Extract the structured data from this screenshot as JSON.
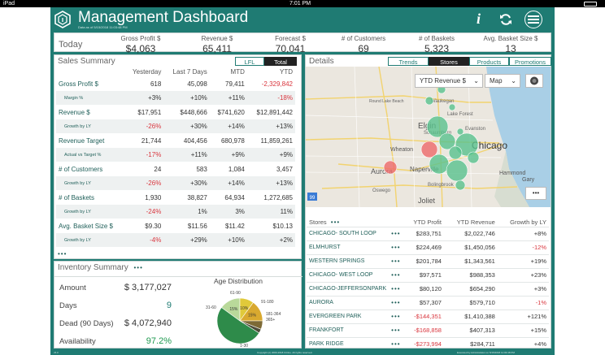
{
  "status_bar": {
    "device": "iPad",
    "time": "7:01 PM"
  },
  "header": {
    "title": "Management Dashboard",
    "as_of": "Data as of 5/15/2018 11:03:48 PM",
    "info_icon": "info-icon",
    "refresh_icon": "refresh-icon",
    "menu_icon": "menu-icon"
  },
  "today": {
    "label": "Today",
    "kpis": [
      {
        "label": "Gross Profit $",
        "value": "$4,063"
      },
      {
        "label": "Revenue $",
        "value": "65,411"
      },
      {
        "label": "Forecast $",
        "value": "70,041"
      },
      {
        "label": "# of Customers",
        "value": "69"
      },
      {
        "label": "# of Baskets",
        "value": "5,323"
      },
      {
        "label": "Avg. Basket Size $",
        "value": "13"
      }
    ]
  },
  "sales_summary": {
    "title": "Sales Summary",
    "toggle": [
      "LFL",
      "Total"
    ],
    "selected_toggle": "Total",
    "columns": [
      "Yesterday",
      "Last 7 Days",
      "MTD",
      "YTD"
    ],
    "rows": [
      {
        "label": "Gross Profit $",
        "values": [
          "618",
          "45,098",
          "79,411",
          "-2,329,842"
        ],
        "neg": [
          false,
          false,
          false,
          true
        ],
        "sub_label": "Margin %",
        "sub_values": [
          "+3%",
          "+10%",
          "+11%",
          "-18%"
        ],
        "sub_neg": [
          false,
          false,
          false,
          true
        ]
      },
      {
        "label": "Revenue  $",
        "values": [
          "$17,951",
          "$448,666",
          "$741,620",
          "$12,891,442"
        ],
        "neg": [
          false,
          false,
          false,
          false
        ],
        "sub_label": "Growth by LY",
        "sub_values": [
          "-26%",
          "+30%",
          "+14%",
          "+13%"
        ],
        "sub_neg": [
          true,
          false,
          false,
          false
        ]
      },
      {
        "label": "Revenue Target",
        "values": [
          "21,744",
          "404,456",
          "680,978",
          "11,859,261"
        ],
        "neg": [
          false,
          false,
          false,
          false
        ],
        "sub_label": "Actual vs Target %",
        "sub_values": [
          "-17%",
          "+11%",
          "+9%",
          "+9%"
        ],
        "sub_neg": [
          true,
          false,
          false,
          false
        ]
      },
      {
        "label": "# of Customers",
        "values": [
          "24",
          "583",
          "1,084",
          "3,457"
        ],
        "neg": [
          false,
          false,
          false,
          false
        ],
        "sub_label": "Growth by LY",
        "sub_values": [
          "-26%",
          "+30%",
          "+14%",
          "+13%"
        ],
        "sub_neg": [
          true,
          false,
          false,
          false
        ]
      },
      {
        "label": "# of Baskets",
        "values": [
          "1,930",
          "38,827",
          "64,934",
          "1,272,685"
        ],
        "neg": [
          false,
          false,
          false,
          false
        ],
        "sub_label": "Growth by LY",
        "sub_values": [
          "-24%",
          "1%",
          "3%",
          "11%"
        ],
        "sub_neg": [
          true,
          false,
          false,
          false
        ]
      },
      {
        "label": "Avg. Basket Size $",
        "values": [
          "$9.30",
          "$11.56",
          "$11.42",
          "$10.13"
        ],
        "neg": [
          false,
          false,
          false,
          false
        ],
        "sub_label": "Growth by LY",
        "sub_values": [
          "-4%",
          "+29%",
          "+10%",
          "+2%"
        ],
        "sub_neg": [
          true,
          false,
          false,
          false
        ]
      }
    ],
    "more_dots": "•••"
  },
  "inventory_summary": {
    "title": "Inventory Summary",
    "more_dots": "•••",
    "items": [
      {
        "label": "Amount",
        "value": "$ 3,177,027",
        "color": "#333333"
      },
      {
        "label": "Days",
        "value": "9",
        "color": "#1f7b73"
      },
      {
        "label": "Dead (90 Days)",
        "value": "$ 4,072,940",
        "color": "#333333"
      },
      {
        "label": "Availability",
        "value": "97.2%",
        "color": "#1f9a50"
      }
    ],
    "age_distribution": {
      "title": "Age Distribution",
      "labels": [
        "61-90",
        "31-60",
        "91-180",
        "181-364",
        "365+",
        "1-30"
      ],
      "slices": [
        {
          "label": "15%",
          "value": 15,
          "color": "#b9d99a"
        },
        {
          "label": "10%",
          "value": 10,
          "color": "#e0c93a"
        },
        {
          "label": "15%",
          "value": 15,
          "color": "#d9a92f"
        },
        {
          "label": "",
          "value": 6,
          "color": "#7d6a36"
        },
        {
          "label": "",
          "value": 3,
          "color": "#4d4d3a"
        },
        {
          "label": "",
          "value": 51,
          "color": "#2e8b4a"
        }
      ]
    }
  },
  "details": {
    "title": "Details",
    "tabs": [
      "Trends",
      "Stores",
      "Products",
      "Promotions"
    ],
    "selected_tab": "Stores",
    "map": {
      "measure_select": "YTD Revenue $",
      "view_select": "Map",
      "city_labels": [
        "Waukegan",
        "Round Lake Beach",
        "Lake Forest",
        "Elgin",
        "Schaumburg",
        "Evanston",
        "Chicago",
        "Wheaton",
        "Naperville",
        "Aurora",
        "Joliet",
        "Hammond",
        "Gary",
        "Oswego",
        "Bolingbrook"
      ],
      "more_dots": "•••"
    },
    "stores_table": {
      "title": "Stores",
      "more_dots": "•••",
      "columns": [
        "YTD Profit",
        "YTD Revenue",
        "Growth by LY"
      ],
      "rows": [
        {
          "name": "CHICAGO- SOUTH LOOP",
          "profit": "$283,751",
          "revenue": "$2,022,746",
          "growth": "+8%",
          "profit_neg": false,
          "growth_neg": false
        },
        {
          "name": "ELMHURST",
          "profit": "$224,469",
          "revenue": "$1,450,056",
          "growth": "-12%",
          "profit_neg": false,
          "growth_neg": true
        },
        {
          "name": "WESTERN SPRINGS",
          "profit": "$201,784",
          "revenue": "$1,343,561",
          "growth": "+19%",
          "profit_neg": false,
          "growth_neg": false
        },
        {
          "name": "CHICAGO- WEST LOOP",
          "profit": "$97,571",
          "revenue": "$988,353",
          "growth": "+23%",
          "profit_neg": false,
          "growth_neg": false
        },
        {
          "name": "CHICAGO-JEFFERSONPARK",
          "profit": "$80,120",
          "revenue": "$654,290",
          "growth": "+3%",
          "profit_neg": false,
          "growth_neg": false
        },
        {
          "name": "AURORA",
          "profit": "$57,307",
          "revenue": "$579,710",
          "growth": "-1%",
          "profit_neg": false,
          "growth_neg": true
        },
        {
          "name": "EVERGREEN PARK",
          "profit": "-$144,351",
          "revenue": "$1,410,388",
          "growth": "+121%",
          "profit_neg": true,
          "growth_neg": false
        },
        {
          "name": "FRANKFORT",
          "profit": "-$168,858",
          "revenue": "$407,313",
          "growth": "+15%",
          "profit_neg": true,
          "growth_neg": false
        },
        {
          "name": "PARK RIDGE",
          "profit": "-$273,994",
          "revenue": "$284,711",
          "growth": "+4%",
          "profit_neg": true,
          "growth_neg": false
        }
      ]
    }
  },
  "footer": {
    "left": "v5.0",
    "center": "Copyright (c) 2000-2018 Citrine. All rights reserved.",
    "right": "Executed by Administrator on 5/15/2018 11:03:48 PM"
  },
  "colors": {
    "brand": "#1f7b73",
    "negative": "#d9363e",
    "positive": "#1f9a50"
  }
}
